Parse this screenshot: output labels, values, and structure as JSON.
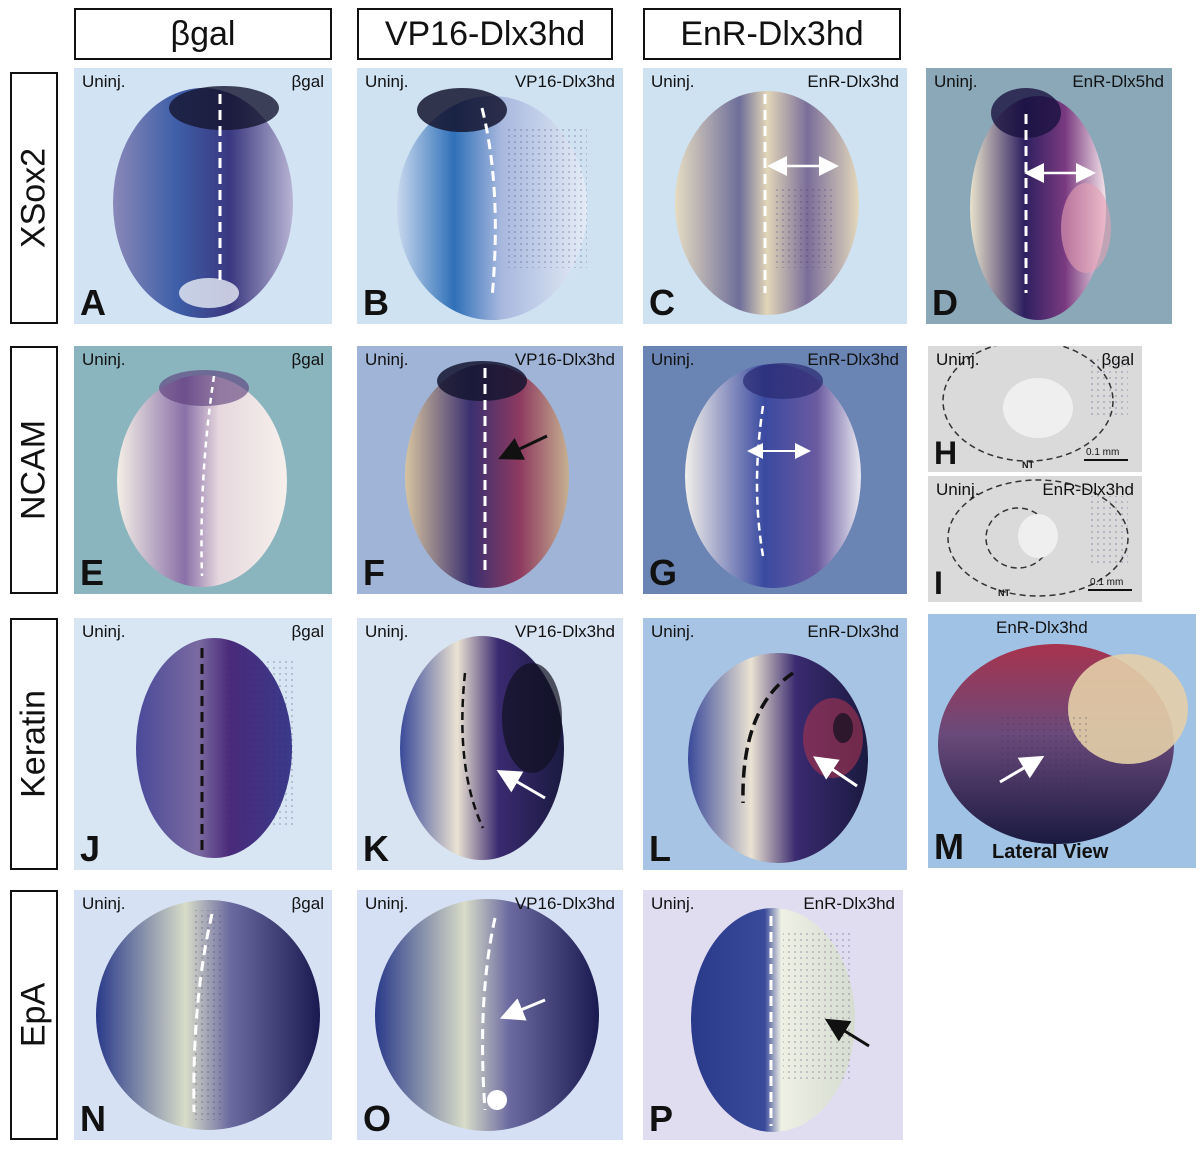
{
  "column_headers": [
    "βgal",
    "VP16-Dlx3hd",
    "EnR-Dlx3hd"
  ],
  "row_headers": [
    "XSox2",
    "NCAM",
    "Keratin",
    "EpA"
  ],
  "panels": {
    "A": {
      "letter": "A",
      "left": "Uninj.",
      "right": "βgal"
    },
    "B": {
      "letter": "B",
      "left": "Uninj.",
      "right": "VP16-Dlx3hd"
    },
    "C": {
      "letter": "C",
      "left": "Uninj.",
      "right": "EnR-Dlx3hd"
    },
    "D": {
      "letter": "D",
      "left": "Uninj.",
      "right": "EnR-Dlx5hd"
    },
    "E": {
      "letter": "E",
      "left": "Uninj.",
      "right": "βgal"
    },
    "F": {
      "letter": "F",
      "left": "Uninj.",
      "right": "VP16-Dlx3hd"
    },
    "G": {
      "letter": "G",
      "left": "Uninj.",
      "right": "EnR-Dlx3hd"
    },
    "H": {
      "letter": "H",
      "left": "Uninj.",
      "right": "βgal",
      "nt": "NT",
      "scale": "0.1 mm"
    },
    "I": {
      "letter": "I",
      "left": "Uninj.",
      "right": "EnR-Dlx3hd",
      "nt": "NT",
      "scale": "0.1 mm"
    },
    "J": {
      "letter": "J",
      "left": "Uninj.",
      "right": "βgal"
    },
    "K": {
      "letter": "K",
      "left": "Uninj.",
      "right": "VP16-Dlx3hd"
    },
    "L": {
      "letter": "L",
      "left": "Uninj.",
      "right": "EnR-Dlx3hd"
    },
    "M": {
      "letter": "M",
      "top": "EnR-Dlx3hd",
      "view": "Lateral View"
    },
    "N": {
      "letter": "N",
      "left": "Uninj.",
      "right": "βgal"
    },
    "O": {
      "letter": "O",
      "left": "Uninj.",
      "right": "VP16-Dlx3hd"
    },
    "P": {
      "letter": "P",
      "left": "Uninj.",
      "right": "EnR-Dlx3hd"
    }
  },
  "colors": {
    "background_blue": "#cfe3f2",
    "stain_purple": "#3a2a6e",
    "stain_red": "#a8334e",
    "tissue_beige": "#e8dcc0"
  }
}
